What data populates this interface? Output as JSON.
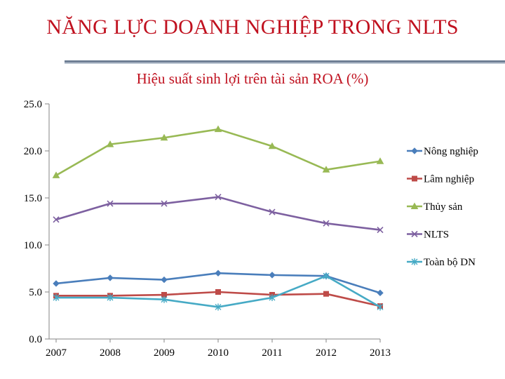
{
  "slide": {
    "title": "NĂNG LỰC DOANH NGHIỆP TRONG NLTS"
  },
  "chart_data": {
    "type": "line",
    "title": "Hiệu suất sinh lợi trên tài sản ROA (%)",
    "xlabel": "",
    "ylabel": "",
    "categories": [
      "2007",
      "2008",
      "2009",
      "2010",
      "2011",
      "2012",
      "2013"
    ],
    "ylim": [
      0,
      25
    ],
    "yticks": [
      "0.0",
      "5.0",
      "10.0",
      "15.0",
      "20.0",
      "25.0"
    ],
    "legend_position": "right",
    "series": [
      {
        "name": "Nông nghiệp",
        "color": "#4a7ebb",
        "marker": "diamond",
        "values": [
          5.9,
          6.5,
          6.3,
          7.0,
          6.8,
          6.7,
          4.9
        ]
      },
      {
        "name": "Lâm nghiệp",
        "color": "#be4b48",
        "marker": "square",
        "values": [
          4.6,
          4.6,
          4.7,
          5.0,
          4.7,
          4.8,
          3.5
        ]
      },
      {
        "name": "Thủy sản",
        "color": "#98b954",
        "marker": "triangle",
        "values": [
          17.4,
          20.7,
          21.4,
          22.3,
          20.5,
          18.0,
          18.9
        ]
      },
      {
        "name": "NLTS",
        "color": "#7d60a0",
        "marker": "x",
        "values": [
          12.7,
          14.4,
          14.4,
          15.1,
          13.5,
          12.3,
          11.6
        ]
      },
      {
        "name": "Toàn bộ DN",
        "color": "#46aac5",
        "marker": "star",
        "values": [
          4.4,
          4.4,
          4.2,
          3.4,
          4.4,
          6.7,
          3.4
        ]
      }
    ]
  }
}
